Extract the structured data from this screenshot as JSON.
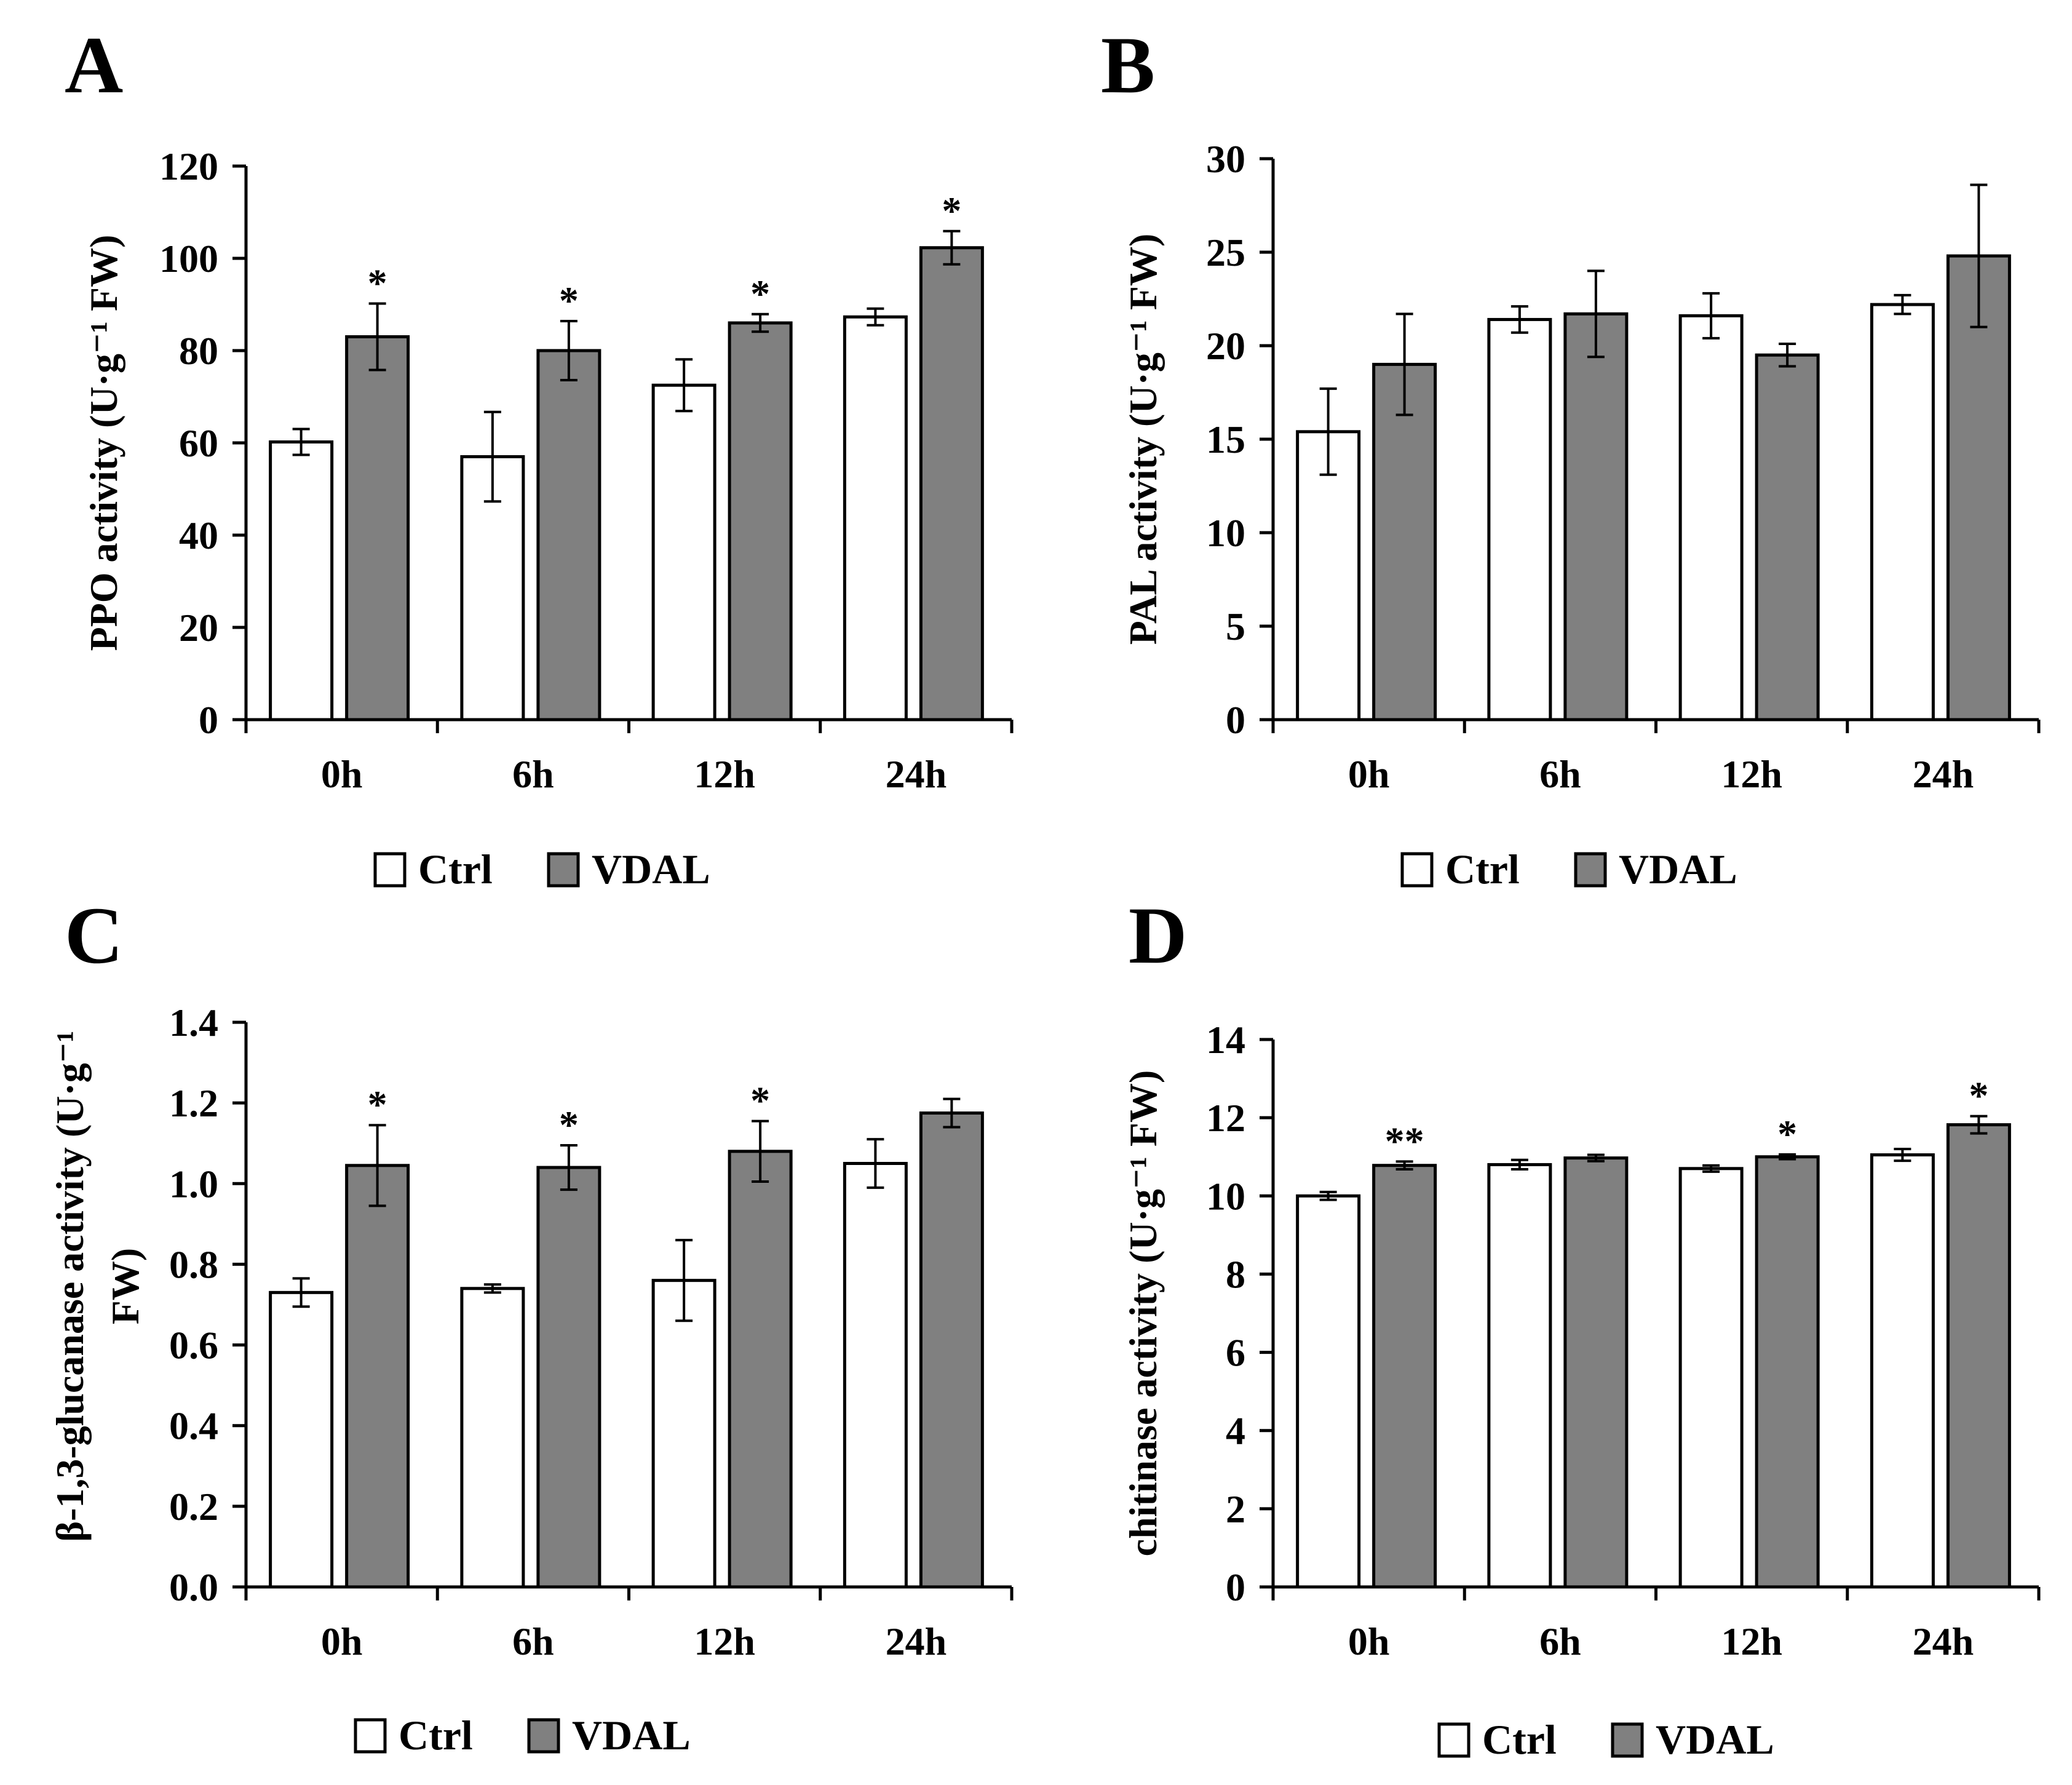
{
  "colors": {
    "ctrl": "#ffffff",
    "vdal": "#808080",
    "stroke": "#000000"
  },
  "chart_data": [
    {
      "type": "bar",
      "panel": "A",
      "ylabel": "PPO activity (U·g⁻¹ FW)",
      "categories": [
        "0h",
        "6h",
        "12h",
        "24h"
      ],
      "ylim": [
        0,
        120
      ],
      "yticks": [
        "0",
        "20",
        "40",
        "60",
        "80",
        "100",
        "120"
      ],
      "series": [
        {
          "name": "Ctrl",
          "values": [
            60.2,
            57.0,
            72.5,
            87.3
          ],
          "errors": [
            2.8,
            9.7,
            5.6,
            1.8
          ]
        },
        {
          "name": "VDAL",
          "values": [
            83.0,
            80.0,
            86.0,
            102.3
          ],
          "errors": [
            7.2,
            6.4,
            1.9,
            3.6
          ]
        }
      ],
      "significance": [
        [
          "",
          "",
          "",
          ""
        ],
        [
          "*",
          "*",
          "*",
          "*"
        ]
      ],
      "legend": [
        "Ctrl",
        "VDAL"
      ]
    },
    {
      "type": "bar",
      "panel": "B",
      "ylabel": "PAL activity (U·g⁻¹ FW)",
      "categories": [
        "0h",
        "6h",
        "12h",
        "24h"
      ],
      "ylim": [
        0,
        30
      ],
      "yticks": [
        "0",
        "5",
        "10",
        "15",
        "20",
        "25",
        "30"
      ],
      "series": [
        {
          "name": "Ctrl",
          "values": [
            15.4,
            21.4,
            21.6,
            22.2
          ],
          "errors": [
            2.3,
            0.7,
            1.2,
            0.5
          ]
        },
        {
          "name": "VDAL",
          "values": [
            19.0,
            21.7,
            19.5,
            24.8
          ],
          "errors": [
            2.7,
            2.3,
            0.6,
            3.8
          ]
        }
      ],
      "significance": [
        [
          "",
          "",
          "",
          ""
        ],
        [
          "",
          "",
          "",
          ""
        ]
      ],
      "legend": [
        "Ctrl",
        "VDAL"
      ]
    },
    {
      "type": "bar",
      "panel": "C",
      "ylabel": "β-1,3-glucanase activity (U·g⁻¹ FW)",
      "categories": [
        "0h",
        "6h",
        "12h",
        "24h"
      ],
      "ylim": [
        0,
        1.4
      ],
      "yticks": [
        "0.0",
        "0.2",
        "0.4",
        "0.6",
        "0.8",
        "1.0",
        "1.2",
        "1.4"
      ],
      "series": [
        {
          "name": "Ctrl",
          "values": [
            0.73,
            0.74,
            0.76,
            1.05
          ],
          "errors": [
            0.035,
            0.01,
            0.1,
            0.06
          ]
        },
        {
          "name": "VDAL",
          "values": [
            1.045,
            1.04,
            1.08,
            1.175
          ],
          "errors": [
            0.1,
            0.055,
            0.075,
            0.035
          ]
        }
      ],
      "significance": [
        [
          "",
          "",
          "",
          ""
        ],
        [
          "*",
          "*",
          "*",
          ""
        ]
      ],
      "legend": [
        "Ctrl",
        "VDAL"
      ]
    },
    {
      "type": "bar",
      "panel": "D",
      "ylabel": "chitinase activity (U·g⁻¹ FW)",
      "categories": [
        "0h",
        "6h",
        "12h",
        "24h"
      ],
      "ylim": [
        0,
        14
      ],
      "yticks": [
        "0",
        "2",
        "4",
        "6",
        "8",
        "10",
        "12",
        "14"
      ],
      "series": [
        {
          "name": "Ctrl",
          "values": [
            10.0,
            10.8,
            10.7,
            11.05
          ],
          "errors": [
            0.1,
            0.12,
            0.08,
            0.15
          ]
        },
        {
          "name": "VDAL",
          "values": [
            10.78,
            10.97,
            11.0,
            11.82
          ],
          "errors": [
            0.1,
            0.08,
            0.06,
            0.22
          ]
        }
      ],
      "significance": [
        [
          "",
          "",
          "",
          ""
        ],
        [
          "**",
          "",
          "*",
          "*"
        ]
      ],
      "legend": [
        "Ctrl",
        "VDAL"
      ]
    }
  ]
}
